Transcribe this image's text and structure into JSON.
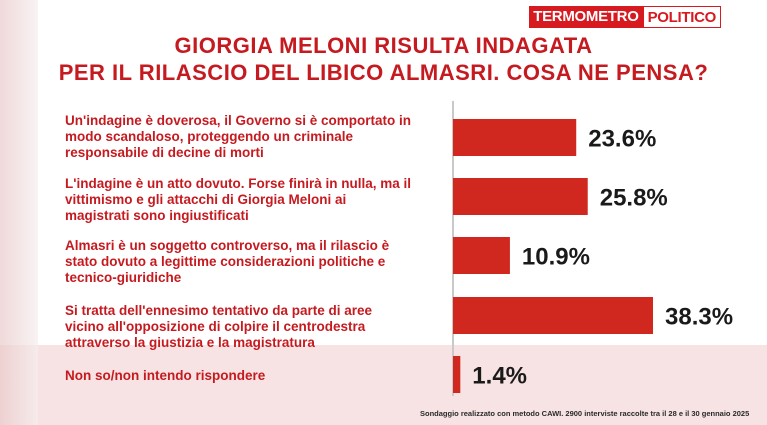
{
  "brand": {
    "part1": "TERMOMETRO",
    "part2": "POLITICO"
  },
  "title_line1": "GIORGIA MELONI RISULTA INDAGATA",
  "title_line2": "PER IL RILASCIO DEL LIBICO ALMASRI. COSA NE PENSA?",
  "footnote": "Sondaggio realizzato con metodo CAWI. 2900 interviste raccolte tra il 28 e il 30 gennaio 2025",
  "colors": {
    "bar": "#d0281f",
    "title": "#c51a1f",
    "label": "#1a1a1a"
  },
  "chart_data": {
    "type": "bar",
    "orientation": "horizontal",
    "categories": [
      "Un'indagine è doverosa, il Governo si è comportato in modo scandaloso, proteggendo un criminale responsabile di decine di morti",
      "L'indagine è un atto dovuto. Forse finirà in nulla, ma il vittimismo e gli attacchi di Giorgia Meloni ai magistrati sono ingiustificati",
      "Almasri è un soggetto controverso, ma il rilascio è stato dovuto a legittime considerazioni politiche e tecnico-giuridiche",
      "Si tratta dell'ennesimo tentativo da parte di aree vicino all'opposizione di colpire il centrodestra attraverso la giustizia e la magistratura",
      "Non so/non intendo rispondere"
    ],
    "category_lines": [
      [
        "Un'indagine è doverosa, il Governo si è comportato in",
        "modo scandaloso, proteggendo un criminale",
        "responsabile di decine di morti"
      ],
      [
        "L'indagine è un atto dovuto. Forse finirà in nulla, ma il",
        "vittimismo e gli attacchi di Giorgia Meloni ai",
        "magistrati sono ingiustificati"
      ],
      [
        "Almasri è un soggetto controverso, ma il rilascio è",
        "stato dovuto a legittime considerazioni politiche e",
        "tecnico-giuridiche"
      ],
      [
        "Si tratta dell'ennesimo tentativo da parte di aree",
        "vicino all'opposizione di colpire il centrodestra",
        "attraverso la giustizia e la magistratura"
      ],
      [
        "Non so/non intendo rispondere"
      ]
    ],
    "values": [
      23.6,
      25.8,
      10.9,
      38.3,
      1.4
    ],
    "value_labels": [
      "23.6%",
      "25.8%",
      "10.9%",
      "38.3%",
      "1.4%"
    ],
    "xlim": [
      0,
      38.3
    ],
    "grid": false,
    "legend": "none"
  }
}
